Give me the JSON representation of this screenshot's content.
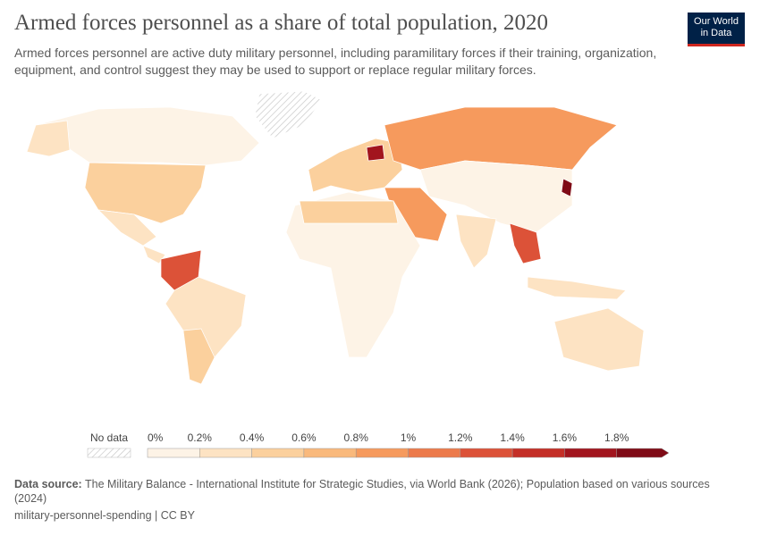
{
  "header": {
    "title": "Armed forces personnel as a share of total population, 2020",
    "subtitle": "Armed forces personnel are active duty military personnel, including paramilitary forces if their training, organization, equipment, and control suggest they may be used to support or replace regular military forces.",
    "logo": [
      "Our World",
      "in Data"
    ]
  },
  "legend": {
    "no_data": "No data",
    "labels": [
      "0%",
      "0.2%",
      "0.4%",
      "0.6%",
      "0.8%",
      "1%",
      "1.2%",
      "1.4%",
      "1.6%",
      "1.8%"
    ],
    "colors": [
      "#fdf3e6",
      "#fde3c3",
      "#fbd09d",
      "#f9b97c",
      "#f69a5d",
      "#ec7a4b",
      "#dc5238",
      "#c42f27",
      "#a2151e",
      "#7f0b16"
    ]
  },
  "footer": {
    "source_label": "Data source:",
    "source": "The Military Balance - International Institute for Strategic Studies, via World Bank (2026); Population based on various sources (2024)",
    "slug": "military-personnel-spending | CC BY"
  }
}
